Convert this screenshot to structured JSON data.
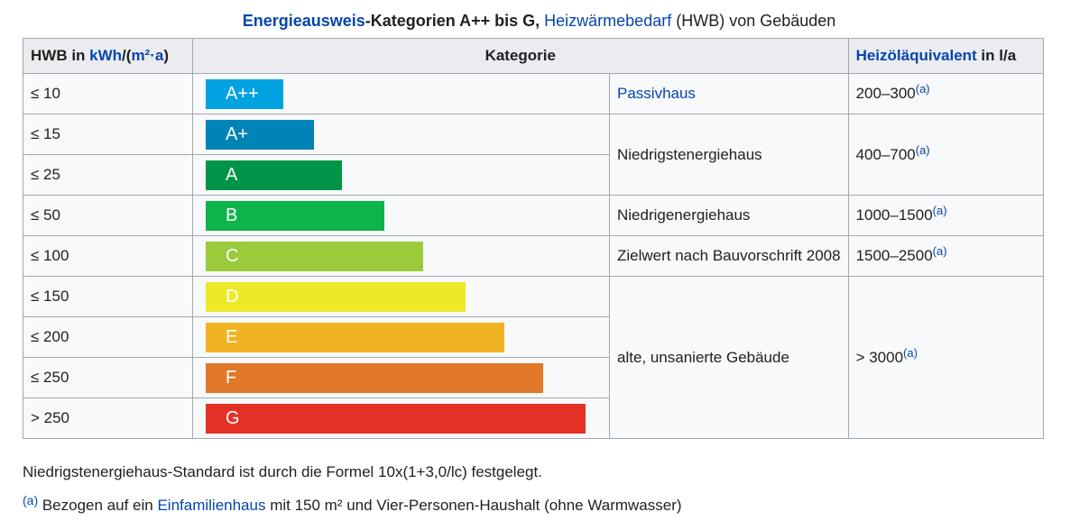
{
  "caption": {
    "link1": "Energieausweis",
    "text1": "-Kategorien A++ bis G, ",
    "link2": "Heizwärmebedarf",
    "text2": " (HWB) von Gebäuden"
  },
  "headers": {
    "hwb_prefix": "HWB in ",
    "hwb_link": "kWh",
    "hwb_mid": "/(",
    "hwb_link2": "m²·a",
    "hwb_suffix": ")",
    "kategorie": "Kategorie",
    "heiz_link": "Heizöläquivalent",
    "heiz_suffix": " in l/a"
  },
  "rows": [
    {
      "hwb": "≤ 10",
      "label": "A++",
      "color": "#00a2e0",
      "width_pct": 20
    },
    {
      "hwb": "≤ 15",
      "label": "A+",
      "color": "#0083b6",
      "width_pct": 28
    },
    {
      "hwb": "≤ 25",
      "label": "A",
      "color": "#009446",
      "width_pct": 35
    },
    {
      "hwb": "≤ 50",
      "label": "B",
      "color": "#0db44b",
      "width_pct": 46
    },
    {
      "hwb": "≤ 100",
      "label": "C",
      "color": "#9acb3c",
      "width_pct": 56
    },
    {
      "hwb": "≤ 150",
      "label": "D",
      "color": "#ede928",
      "width_pct": 67
    },
    {
      "hwb": "≤ 200",
      "label": "E",
      "color": "#f0b323",
      "width_pct": 77
    },
    {
      "hwb": "≤ 250",
      "label": "F",
      "color": "#e2782a",
      "width_pct": 87
    },
    {
      "hwb": "> 250",
      "label": "G",
      "color": "#e33225",
      "width_pct": 98
    }
  ],
  "groups": [
    {
      "name": "Passivhaus",
      "is_link": true,
      "oil": "200–300",
      "ref": "(a)"
    },
    {
      "name": "Niedrigstenergiehaus",
      "is_link": false,
      "oil": "400–700",
      "ref": "(a)"
    },
    {
      "name": "Niedrigenergiehaus",
      "is_link": false,
      "oil": "1000–1500",
      "ref": "(a)"
    },
    {
      "name": "Zielwert nach Bauvorschrift 2008",
      "is_link": false,
      "oil": "1500–2500",
      "ref": "(a)"
    },
    {
      "name": "alte, unsanierte Gebäude",
      "is_link": false,
      "oil": "> 3000",
      "ref": "(a)"
    }
  ],
  "notes": {
    "note1": "Niedrigstenergiehaus-Standard ist durch die Formel 10x(1+3,0/lc) festgelegt.",
    "ref_mark": "(a)",
    "note2_pre": " Bezogen auf ein ",
    "note2_link": "Einfamilienhaus",
    "note2_post": " mit 150 m² und Vier-Personen-Haushalt (ohne Warmwasser)"
  }
}
